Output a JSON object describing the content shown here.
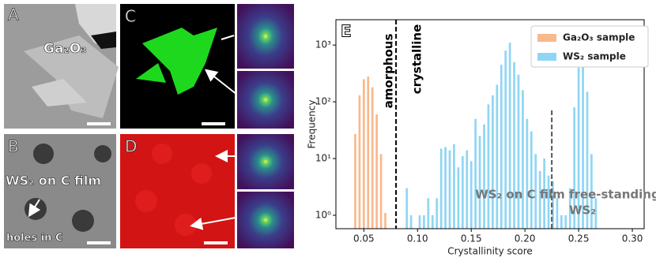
{
  "panels": {
    "a": "A",
    "a_text": "Ga₂O₃",
    "b": "B",
    "b_text1": "WS₂ on C film",
    "b_text2": "holes in C",
    "c": "C",
    "d": "D"
  },
  "chart_data": {
    "type": "histogram",
    "panel_label": "E",
    "xlabel": "Crystallinity score",
    "ylabel": "Frequency",
    "log_y": true,
    "xlim": [
      0.024,
      0.311
    ],
    "ylim": [
      0.58,
      2800
    ],
    "xticks": [
      0.05,
      {
        "value": 0.1,
        "label": "0.10"
      },
      0.15,
      {
        "value": 0.2,
        "label": "0.20"
      },
      0.25,
      {
        "value": 0.3,
        "label": "0.30"
      }
    ],
    "yticks": [
      {
        "value": 1,
        "label": "10⁰"
      },
      {
        "value": 10,
        "label": "10¹"
      },
      {
        "value": 100,
        "label": "10²"
      },
      {
        "value": 1000,
        "label": "10³"
      }
    ],
    "legend": "upper right",
    "bins": [
      0.04,
      0.044,
      0.048,
      0.052,
      0.056,
      0.06,
      0.064,
      0.068,
      0.072,
      0.076,
      0.08,
      0.084,
      0.088,
      0.092,
      0.096,
      0.1,
      0.104,
      0.108,
      0.112,
      0.116,
      0.12,
      0.124,
      0.128,
      0.132,
      0.136,
      0.14,
      0.144,
      0.148,
      0.152,
      0.156,
      0.16,
      0.164,
      0.168,
      0.172,
      0.176,
      0.18,
      0.184,
      0.188,
      0.192,
      0.196,
      0.2,
      0.204,
      0.208,
      0.212,
      0.216,
      0.22,
      0.224,
      0.228,
      0.232,
      0.236,
      0.24,
      0.244,
      0.248,
      0.252,
      0.256,
      0.26,
      0.264,
      0.268,
      0.272
    ],
    "series": [
      {
        "name": "Ga₂O₃ sample",
        "color": "#f8b98c",
        "values": [
          27,
          130,
          250,
          280,
          180,
          60,
          12,
          1.1,
          null,
          null,
          null,
          null,
          null,
          null,
          null,
          null,
          null,
          null,
          null,
          null,
          null,
          null,
          null,
          null,
          null,
          null,
          null,
          null,
          null,
          null,
          null,
          null,
          null,
          null,
          null,
          null,
          null,
          null,
          null,
          null,
          null,
          null,
          null,
          null,
          null,
          null,
          null,
          null,
          null,
          null,
          null,
          null,
          null,
          null,
          null,
          null,
          null,
          null
        ]
      },
      {
        "name": "WS₂ sample",
        "color": "#8fd6f4",
        "values": [
          null,
          null,
          null,
          null,
          null,
          null,
          null,
          null,
          null,
          null,
          null,
          null,
          3,
          1,
          null,
          1,
          1,
          2,
          1,
          2,
          15,
          16,
          14,
          18,
          7,
          11,
          14,
          9,
          50,
          25,
          40,
          90,
          130,
          200,
          450,
          800,
          1100,
          500,
          300,
          160,
          50,
          30,
          12,
          6,
          10,
          5,
          4,
          2,
          1,
          1,
          3,
          80,
          400,
          700,
          150,
          12,
          2,
          null
        ]
      }
    ],
    "vlines": [
      {
        "x": 0.08,
        "color": "#000000"
      },
      {
        "x": 0.225,
        "color": "#555555"
      }
    ],
    "annotations": [
      "amorphous",
      "crystalline",
      "WS₂ on C film",
      "free-standing",
      "WS₂"
    ]
  }
}
